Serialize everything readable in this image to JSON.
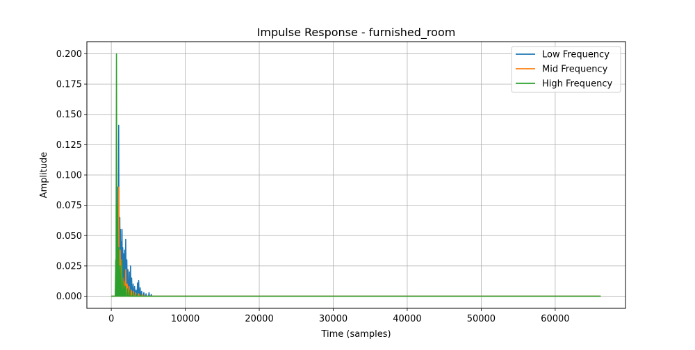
{
  "chart_data": {
    "type": "line",
    "title": "Impulse Response - furnished_room",
    "xlabel": "Time (samples)",
    "ylabel": "Amplitude",
    "xlim": [
      -3300,
      69500
    ],
    "ylim": [
      -0.01,
      0.21
    ],
    "xticks": [
      0,
      10000,
      20000,
      30000,
      40000,
      50000,
      60000
    ],
    "yticks": [
      0.0,
      0.025,
      0.05,
      0.075,
      0.1,
      0.125,
      0.15,
      0.175,
      0.2
    ],
    "xtick_labels": [
      "0",
      "10000",
      "20000",
      "30000",
      "40000",
      "50000",
      "60000"
    ],
    "ytick_labels": [
      "0.000",
      "0.025",
      "0.050",
      "0.075",
      "0.100",
      "0.125",
      "0.150",
      "0.175",
      "0.200"
    ],
    "grid": true,
    "legend_position": "top-right",
    "x_end": 66150,
    "series": [
      {
        "name": "Low Frequency",
        "color": "#1f77b4",
        "peaks": [
          [
            700,
            0.03
          ],
          [
            900,
            0.09
          ],
          [
            1000,
            0.141
          ],
          [
            1150,
            0.065
          ],
          [
            1250,
            0.055
          ],
          [
            1350,
            0.045
          ],
          [
            1450,
            0.055
          ],
          [
            1550,
            0.04
          ],
          [
            1650,
            0.035
          ],
          [
            1800,
            0.038
          ],
          [
            1950,
            0.047
          ],
          [
            2100,
            0.03
          ],
          [
            2250,
            0.022
          ],
          [
            2450,
            0.02
          ],
          [
            2600,
            0.025
          ],
          [
            2750,
            0.015
          ],
          [
            2950,
            0.01
          ],
          [
            3150,
            0.008
          ],
          [
            3350,
            0.005
          ],
          [
            3550,
            0.011
          ],
          [
            3700,
            0.013
          ],
          [
            3900,
            0.007
          ],
          [
            4100,
            0.004
          ],
          [
            4400,
            0.003
          ],
          [
            4700,
            0.002
          ],
          [
            5100,
            0.003
          ],
          [
            5400,
            0.0015
          ]
        ]
      },
      {
        "name": "Mid Frequency",
        "color": "#ff7f0e",
        "peaks": [
          [
            680,
            0.025
          ],
          [
            800,
            0.05
          ],
          [
            1000,
            0.09
          ],
          [
            1200,
            0.038
          ],
          [
            1400,
            0.03
          ],
          [
            1550,
            0.015
          ],
          [
            1750,
            0.012
          ],
          [
            1950,
            0.022
          ],
          [
            2150,
            0.01
          ],
          [
            2400,
            0.008
          ],
          [
            2700,
            0.005
          ],
          [
            3000,
            0.004
          ],
          [
            3300,
            0.003
          ],
          [
            3700,
            0.002
          ],
          [
            4200,
            0.0015
          ]
        ]
      },
      {
        "name": "High Frequency",
        "color": "#2ca02c",
        "peaks": [
          [
            600,
            0.03
          ],
          [
            700,
            0.2
          ],
          [
            850,
            0.075
          ],
          [
            1000,
            0.04
          ],
          [
            1200,
            0.025
          ],
          [
            1450,
            0.03
          ],
          [
            1700,
            0.012
          ],
          [
            1900,
            0.008
          ],
          [
            2200,
            0.006
          ],
          [
            2500,
            0.005
          ],
          [
            2900,
            0.003
          ],
          [
            3400,
            0.002
          ],
          [
            4000,
            0.001
          ]
        ]
      }
    ]
  }
}
